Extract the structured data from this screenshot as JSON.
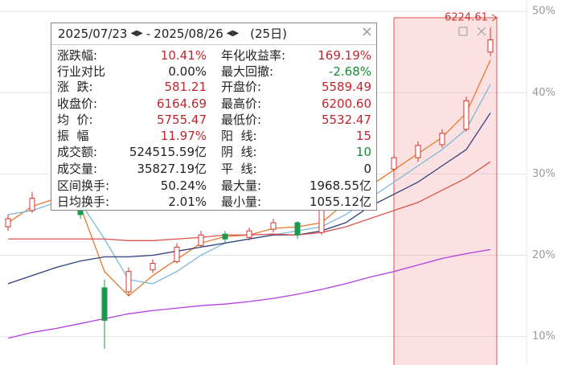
{
  "chart_data": {
    "type": "candlestick",
    "ylim": [
      6.5,
      51.4
    ],
    "yticks": [
      {
        "value": 50,
        "label": "50%"
      },
      {
        "value": 40,
        "label": "40%"
      },
      {
        "value": 30,
        "label": "30%"
      },
      {
        "value": 20,
        "label": "20%"
      },
      {
        "value": 10,
        "label": "10%"
      }
    ],
    "grid": true,
    "up_color": "#d0342c",
    "down_color": "#1a9a4a",
    "candles": [
      [
        23.5,
        25.0,
        23.0,
        24.5
      ],
      [
        25.5,
        27.8,
        25.2,
        27.0
      ],
      [
        27.2,
        27.6,
        26.0,
        26.8
      ],
      [
        26.5,
        26.8,
        24.5,
        25.0
      ],
      [
        16.0,
        17.0,
        8.5,
        12.0
      ],
      [
        15.5,
        18.5,
        15.0,
        18.0
      ],
      [
        18.2,
        19.5,
        17.8,
        19.0
      ],
      [
        19.2,
        21.5,
        19.0,
        21.0
      ],
      [
        21.2,
        23.0,
        21.0,
        22.5
      ],
      [
        22.6,
        23.0,
        21.5,
        22.0
      ],
      [
        22.2,
        23.4,
        21.8,
        23.0
      ],
      [
        23.2,
        24.5,
        22.8,
        24.0
      ],
      [
        24.0,
        24.2,
        22.0,
        22.5
      ],
      [
        22.8,
        27.0,
        22.5,
        26.5
      ],
      [
        26.8,
        29.0,
        26.5,
        28.5
      ],
      [
        28.6,
        31.0,
        28.2,
        30.5
      ],
      [
        30.6,
        32.4,
        30.2,
        32.0
      ],
      [
        32.0,
        34.0,
        31.5,
        33.5
      ],
      [
        33.6,
        35.5,
        33.2,
        35.0
      ],
      [
        35.5,
        39.5,
        35.2,
        39.0
      ],
      [
        45.0,
        48.0,
        44.5,
        46.5
      ]
    ],
    "series": [
      {
        "color": "#e8782c",
        "values": [
          24,
          26,
          27,
          26,
          18,
          15,
          17.5,
          19.5,
          21.5,
          22.3,
          22.5,
          23.3,
          23.5,
          24,
          26.5,
          28.5,
          30.5,
          32.5,
          34.5,
          37.5,
          44
        ]
      },
      {
        "color": "#7fb8d8",
        "values": [
          25,
          25.5,
          26.5,
          26.5,
          22,
          17,
          16.5,
          18,
          20,
          21.5,
          22,
          22.5,
          23,
          23.5,
          25,
          27,
          29,
          31,
          33,
          35.5,
          41
        ]
      },
      {
        "color": "#2c3f7a",
        "values": [
          16.5,
          17.5,
          18.5,
          19.3,
          19.8,
          19.8,
          20,
          20.5,
          21,
          21.5,
          22,
          22.5,
          22.5,
          23,
          24,
          26,
          27.5,
          29,
          31,
          33,
          37.5
        ]
      },
      {
        "color": "#d9544a",
        "values": [
          22,
          22,
          22,
          22,
          22,
          21.8,
          21.8,
          22,
          22.2,
          22.5,
          22.5,
          22.6,
          22.5,
          22.8,
          23.5,
          24.5,
          25.5,
          26.5,
          28,
          29.5,
          31.5
        ]
      },
      {
        "color": "#b43ce0",
        "values": [
          9.8,
          10.5,
          11,
          11.6,
          12.2,
          12.8,
          13.2,
          13.5,
          13.8,
          14,
          14.3,
          14.7,
          15.2,
          15.8,
          16.5,
          17.3,
          18,
          18.8,
          19.6,
          20.2,
          20.7
        ]
      }
    ],
    "highlight_label": "6224.61"
  },
  "info_panel": {
    "start_date": "2025/07/23",
    "separator": "-",
    "end_date": "2025/08/26",
    "days": "(25日)",
    "rows": [
      [
        {
          "label": "涨跌幅:",
          "value": "10.41%",
          "color": "#c0262d"
        },
        {
          "label": "年化收益率:",
          "value": "169.19%",
          "color": "#c0262d"
        }
      ],
      [
        {
          "label": "行业对比",
          "value": "0.00%",
          "color": "#222222"
        },
        {
          "label": "最大回撤:",
          "value": "-2.68%",
          "color": "#1a8a3a"
        }
      ],
      [
        {
          "label": "涨  跌:",
          "value": "581.21",
          "color": "#c0262d"
        },
        {
          "label": "开盘价:",
          "value": "5589.49",
          "color": "#c0262d"
        }
      ],
      [
        {
          "label": "收盘价:",
          "value": "6164.69",
          "color": "#c0262d"
        },
        {
          "label": "最高价:",
          "value": "6200.60",
          "color": "#c0262d"
        }
      ],
      [
        {
          "label": "均  价:",
          "value": "5755.47",
          "color": "#c0262d"
        },
        {
          "label": "最低价:",
          "value": "5532.47",
          "color": "#c0262d"
        }
      ],
      [
        {
          "label": "振  幅",
          "value": "11.97%",
          "color": "#c0262d"
        },
        {
          "label": "阳  线:",
          "value": "15",
          "color": "#c0262d"
        }
      ],
      [
        {
          "label": "成交额:",
          "value": "524515.59亿",
          "color": "#222222"
        },
        {
          "label": "阴  线:",
          "value": "10",
          "color": "#1a8a3a"
        }
      ],
      [
        {
          "label": "成交量:",
          "value": "35827.19亿",
          "color": "#222222"
        },
        {
          "label": "平  线:",
          "value": "0",
          "color": "#222222"
        }
      ],
      [
        {
          "label": "区间换手:",
          "value": "50.24%",
          "color": "#222222"
        },
        {
          "label": "最大量:",
          "value": "1968.55亿",
          "color": "#222222"
        }
      ],
      [
        {
          "label": "日均换手:",
          "value": "2.01%",
          "color": "#222222"
        },
        {
          "label": "最小量:",
          "value": "1055.12亿",
          "color": "#222222"
        }
      ]
    ]
  }
}
